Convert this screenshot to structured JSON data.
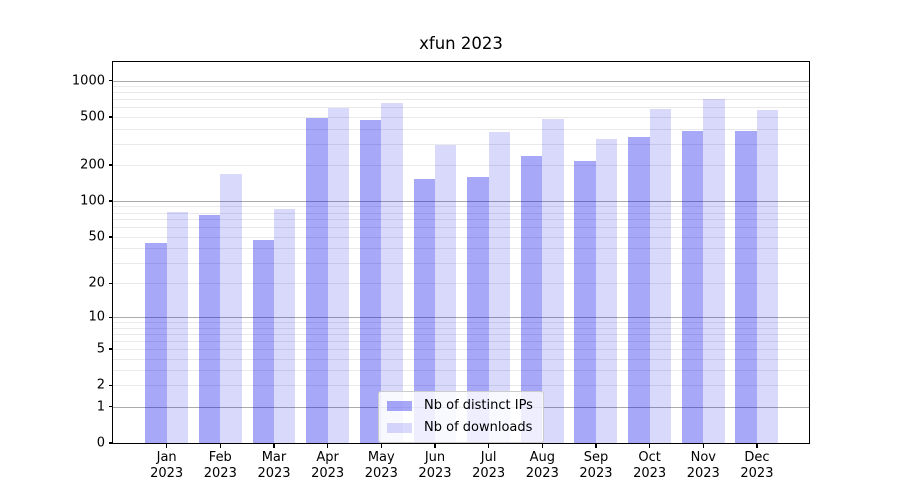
{
  "chart_data": {
    "type": "bar",
    "title": "xfun 2023",
    "categories": [
      "Jan 2023",
      "Feb 2023",
      "Mar 2023",
      "Apr 2023",
      "May 2023",
      "Jun 2023",
      "Jul 2023",
      "Aug 2023",
      "Sep 2023",
      "Oct 2023",
      "Nov 2023",
      "Dec 2023"
    ],
    "series": [
      {
        "name": "Nb of distinct IPs",
        "color": "rgba(0,0,235,0.34)",
        "values": [
          44,
          77,
          47,
          490,
          475,
          153,
          158,
          237,
          214,
          340,
          385,
          385
        ]
      },
      {
        "name": "Nb of downloads",
        "color": "rgba(0,0,235,0.15)",
        "values": [
          81,
          168,
          86,
          590,
          650,
          292,
          375,
          485,
          330,
          580,
          700,
          570
        ]
      }
    ],
    "yscale": "log10(1+x)",
    "yticks": [
      0,
      1,
      2,
      5,
      10,
      20,
      50,
      100,
      200,
      500,
      1000
    ],
    "major_grid_values": [
      1,
      10,
      100,
      1000
    ],
    "minor_grid_values": [
      2,
      3,
      4,
      5,
      6,
      7,
      8,
      9,
      20,
      30,
      40,
      50,
      60,
      70,
      80,
      90,
      200,
      300,
      400,
      500,
      600,
      700,
      800,
      900
    ],
    "ylim": [
      0,
      1430
    ],
    "xlim": [
      -1,
      11.97
    ],
    "bar_width_units": 0.4,
    "grid": "on",
    "legend_position": "lower center",
    "colors": {
      "bar_dark": "rgba(0,0,235,0.34)",
      "bar_light": "rgba(0,0,235,0.15)",
      "grid_major": "#ababab",
      "grid_minor": "#e9e9e9",
      "axis": "#000000",
      "background": "#ffffff"
    }
  }
}
